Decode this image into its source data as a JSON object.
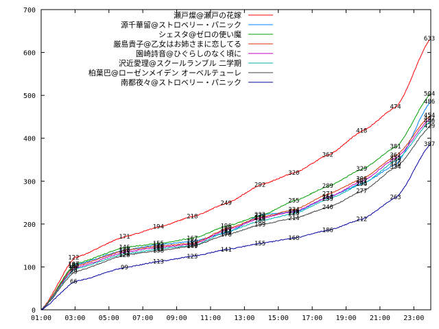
{
  "chart_data": {
    "type": "line",
    "title": "",
    "xlabel": "",
    "ylabel": "",
    "x_range": [
      1,
      24
    ],
    "ylim": [
      0,
      700
    ],
    "y_ticks": [
      0,
      100,
      200,
      300,
      400,
      500,
      600,
      700
    ],
    "x_ticks": [
      {
        "h": 1,
        "label": "01:00"
      },
      {
        "h": 3,
        "label": "03:00"
      },
      {
        "h": 5,
        "label": "05:00"
      },
      {
        "h": 7,
        "label": "07:00"
      },
      {
        "h": 9,
        "label": "09:00"
      },
      {
        "h": 11,
        "label": "11:00"
      },
      {
        "h": 13,
        "label": "13:00"
      },
      {
        "h": 15,
        "label": "15:00"
      },
      {
        "h": 17,
        "label": "17:00"
      },
      {
        "h": 19,
        "label": "19:00"
      },
      {
        "h": 21,
        "label": "21:00"
      },
      {
        "h": 23,
        "label": "23:00"
      }
    ],
    "grid": false,
    "legend_position": "top-right",
    "label_hours": [
      3,
      6,
      8,
      10,
      12,
      14,
      16,
      18,
      20,
      22,
      24
    ],
    "series": [
      {
        "name": "瀬戸燦@瀬戸の花嫁",
        "color": "#ff0000",
        "values": [
          0,
          122,
          171,
          194,
          218,
          249,
          292,
          320,
          362,
          418,
          474,
          633
        ]
      },
      {
        "name": "源千華留@ストロベリー・パニック",
        "color": "#0080ff",
        "values": [
          0,
          105,
          140,
          152,
          160,
          180,
          222,
          228,
          264,
          295,
          340,
          486
        ]
      },
      {
        "name": "シェスタ@ゼロの使い魔",
        "color": "#00a000",
        "values": [
          0,
          107,
          146,
          155,
          167,
          196,
          220,
          255,
          289,
          329,
          381,
          504
        ]
      },
      {
        "name": "厳島貴子@乙女はお姉さまに恋してる",
        "color": "#d83000",
        "values": [
          0,
          102,
          139,
          149,
          155,
          190,
          216,
          234,
          271,
          306,
          361,
          454
        ]
      },
      {
        "name": "園崎詩音@ひぐらしのなく頃に",
        "color": "#c000c0",
        "values": [
          0,
          98,
          135,
          146,
          153,
          187,
          214,
          230,
          263,
          301,
          355,
          447
        ]
      },
      {
        "name": "沢近愛理@スクールランブル 二学期",
        "color": "#00b0b0",
        "values": [
          0,
          95,
          131,
          142,
          150,
          183,
          208,
          225,
          259,
          294,
          349,
          440
        ]
      },
      {
        "name": "柏葉巴@ローゼンメイデン オーベルテューレ",
        "color": "#404040",
        "values": [
          0,
          89,
          128,
          138,
          149,
          176,
          199,
          214,
          240,
          277,
          334,
          429
        ]
      },
      {
        "name": "南都夜々@ストロベリー・パニック",
        "color": "#0000a0",
        "values": [
          0,
          66,
          99,
          113,
          125,
          141,
          155,
          168,
          186,
          212,
          263,
          387
        ]
      }
    ]
  }
}
